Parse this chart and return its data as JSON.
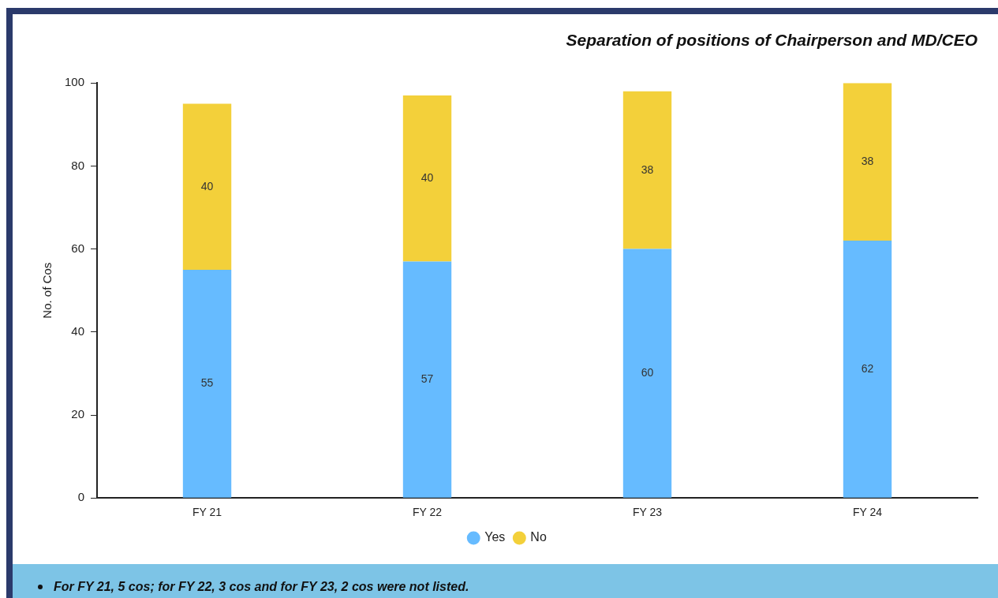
{
  "chart_data": {
    "type": "bar",
    "title": "Separation of positions of Chairperson and MD/CEO",
    "ylabel": "No. of Cos",
    "categories": [
      "FY 21",
      "FY 22",
      "FY 23",
      "FY 24"
    ],
    "series": [
      {
        "name": "Yes",
        "color": "#66bbff",
        "values": [
          55,
          57,
          60,
          62
        ]
      },
      {
        "name": "No",
        "color": "#f3d03a",
        "values": [
          40,
          40,
          38,
          38
        ]
      }
    ],
    "stacked": true,
    "ylim": [
      0,
      100
    ],
    "yticks": [
      0,
      20,
      40,
      60,
      80,
      100
    ],
    "grid": false,
    "legend": "bottom",
    "data_labels": true,
    "annotations": [
      "For FY 21, 5 cos; for FY 22, 3 cos and for FY 23, 2 cos were not listed."
    ]
  }
}
